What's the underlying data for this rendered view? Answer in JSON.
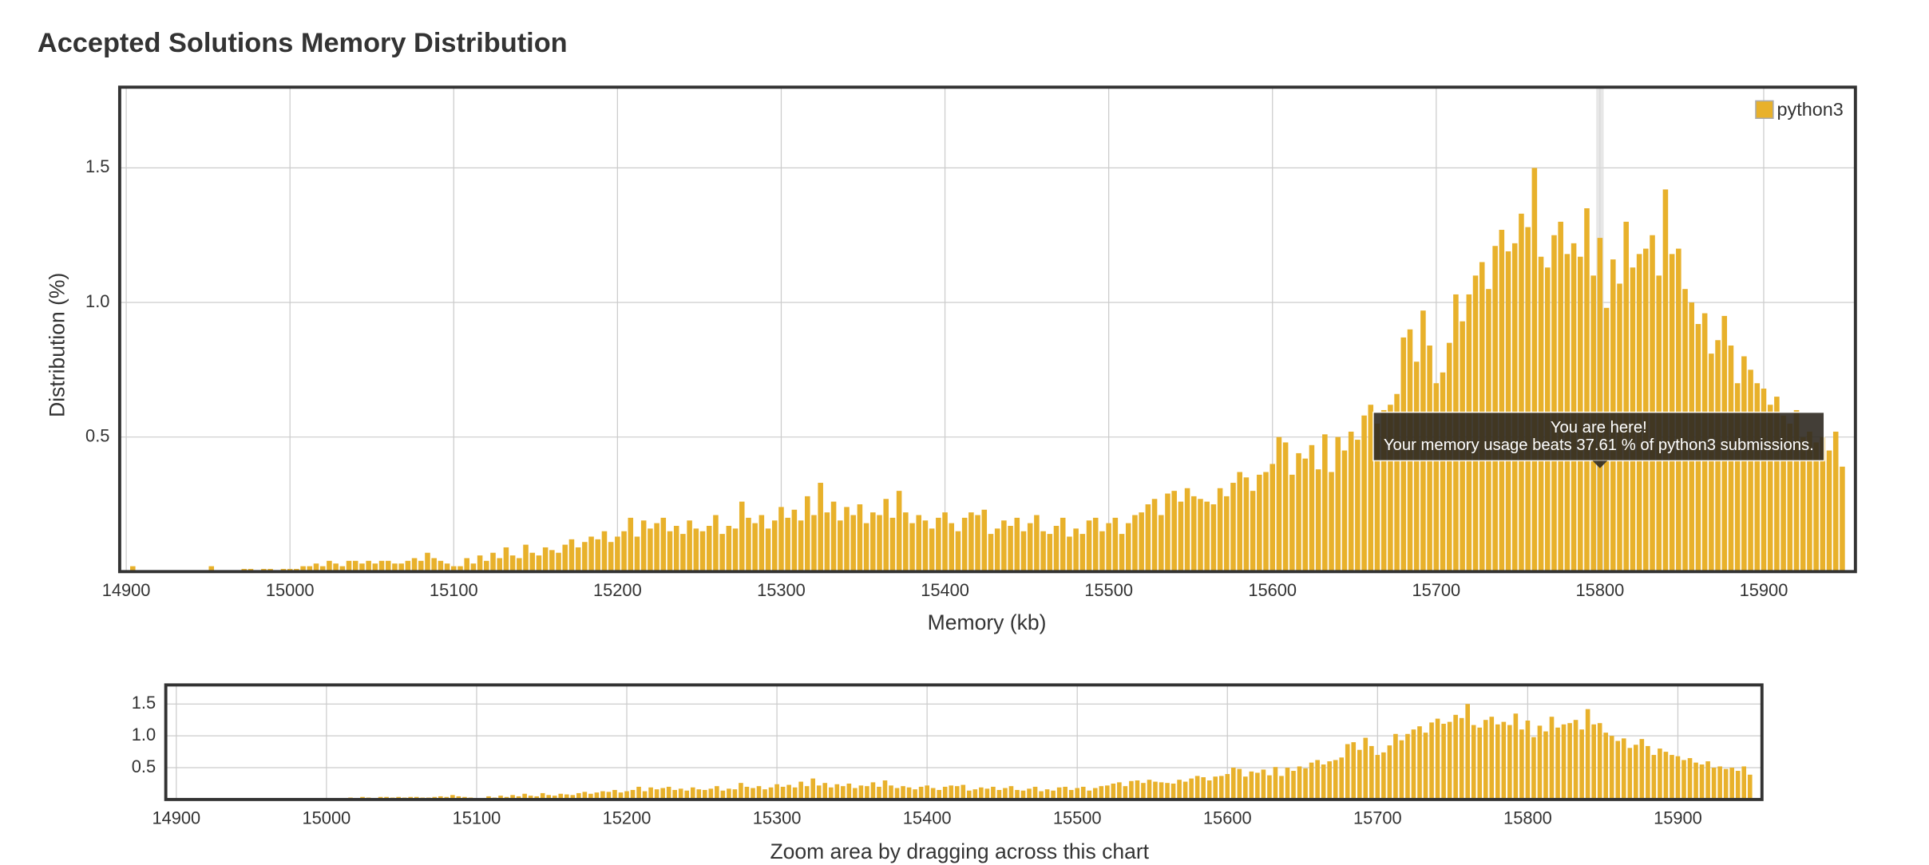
{
  "chart_data": {
    "type": "bar",
    "title": "Accepted Solutions Memory Distribution",
    "xlabel": "Memory (kb)",
    "ylabel": "Distribution (%)",
    "xlim": [
      14896,
      15956
    ],
    "ylim": [
      0,
      1.8
    ],
    "xticks": [
      14900,
      15000,
      15100,
      15200,
      15300,
      15400,
      15500,
      15600,
      15700,
      15800,
      15900
    ],
    "yticks": [
      0.5,
      {
        "value": 1,
        "label": "1.0"
      },
      1.5
    ],
    "grid": true,
    "legend": "top-right",
    "annotation": {
      "title": "You are here!",
      "text": "Your memory usage beats 37.61 % of python3 submissions.",
      "x": 15800
    },
    "navigator": {
      "label": "Zoom area by dragging across this chart",
      "xlim": [
        14893,
        15956
      ],
      "ylim": [
        0,
        1.8
      ],
      "xticks": [
        14900,
        15000,
        15100,
        15200,
        15300,
        15400,
        15500,
        15600,
        15700,
        15800,
        15900
      ],
      "yticks": [
        0.5,
        {
          "value": 1,
          "label": "1.0"
        },
        1.5
      ]
    },
    "x": [
      14904,
      14908,
      14912,
      14916,
      14920,
      14924,
      14928,
      14932,
      14936,
      14940,
      14944,
      14948,
      14952,
      14956,
      14960,
      14964,
      14968,
      14972,
      14976,
      14980,
      14984,
      14988,
      14992,
      14996,
      15000,
      15004,
      15008,
      15012,
      15016,
      15020,
      15024,
      15028,
      15032,
      15036,
      15040,
      15044,
      15048,
      15052,
      15056,
      15060,
      15064,
      15068,
      15072,
      15076,
      15080,
      15084,
      15088,
      15092,
      15096,
      15100,
      15104,
      15108,
      15112,
      15116,
      15120,
      15124,
      15128,
      15132,
      15136,
      15140,
      15144,
      15148,
      15152,
      15156,
      15160,
      15164,
      15168,
      15172,
      15176,
      15180,
      15184,
      15188,
      15192,
      15196,
      15200,
      15204,
      15208,
      15212,
      15216,
      15220,
      15224,
      15228,
      15232,
      15236,
      15240,
      15244,
      15248,
      15252,
      15256,
      15260,
      15264,
      15268,
      15272,
      15276,
      15280,
      15284,
      15288,
      15292,
      15296,
      15300,
      15304,
      15308,
      15312,
      15316,
      15320,
      15324,
      15328,
      15332,
      15336,
      15340,
      15344,
      15348,
      15352,
      15356,
      15360,
      15364,
      15368,
      15372,
      15376,
      15380,
      15384,
      15388,
      15392,
      15396,
      15400,
      15404,
      15408,
      15412,
      15416,
      15420,
      15424,
      15428,
      15432,
      15436,
      15440,
      15444,
      15448,
      15452,
      15456,
      15460,
      15464,
      15468,
      15472,
      15476,
      15480,
      15484,
      15488,
      15492,
      15496,
      15500,
      15504,
      15508,
      15512,
      15516,
      15520,
      15524,
      15528,
      15532,
      15536,
      15540,
      15544,
      15548,
      15552,
      15556,
      15560,
      15564,
      15568,
      15572,
      15576,
      15580,
      15584,
      15588,
      15592,
      15596,
      15600,
      15604,
      15608,
      15612,
      15616,
      15620,
      15624,
      15628,
      15632,
      15636,
      15640,
      15644,
      15648,
      15652,
      15656,
      15660,
      15664,
      15668,
      15672,
      15676,
      15680,
      15684,
      15688,
      15692,
      15696,
      15700,
      15704,
      15708,
      15712,
      15716,
      15720,
      15724,
      15728,
      15732,
      15736,
      15740,
      15744,
      15748,
      15752,
      15756,
      15760,
      15764,
      15768,
      15772,
      15776,
      15780,
      15784,
      15788,
      15792,
      15796,
      15800,
      15804,
      15808,
      15812,
      15816,
      15820,
      15824,
      15828,
      15832,
      15836,
      15840,
      15844,
      15848,
      15852,
      15856,
      15860,
      15864,
      15868,
      15872,
      15876,
      15880,
      15884,
      15888,
      15892,
      15896,
      15900,
      15904,
      15908,
      15912,
      15916,
      15920,
      15924,
      15928,
      15932,
      15936,
      15940,
      15944,
      15948
    ],
    "series": [
      {
        "name": "python3",
        "color": "#e8b12b",
        "values": [
          0.02,
          0,
          0,
          0,
          0,
          0,
          0,
          0,
          0,
          0,
          0,
          0,
          0.02,
          0,
          0,
          0,
          0,
          0.01,
          0.01,
          0,
          0.01,
          0.01,
          0,
          0.01,
          0.01,
          0.01,
          0.02,
          0.02,
          0.03,
          0.02,
          0.04,
          0.03,
          0.02,
          0.04,
          0.04,
          0.03,
          0.04,
          0.03,
          0.04,
          0.04,
          0.03,
          0.03,
          0.04,
          0.05,
          0.04,
          0.07,
          0.05,
          0.04,
          0.03,
          0.02,
          0.02,
          0.05,
          0.03,
          0.06,
          0.04,
          0.07,
          0.05,
          0.09,
          0.06,
          0.05,
          0.1,
          0.07,
          0.06,
          0.09,
          0.08,
          0.07,
          0.1,
          0.12,
          0.09,
          0.11,
          0.13,
          0.12,
          0.15,
          0.11,
          0.13,
          0.15,
          0.2,
          0.13,
          0.19,
          0.16,
          0.18,
          0.2,
          0.15,
          0.17,
          0.14,
          0.19,
          0.16,
          0.15,
          0.17,
          0.21,
          0.14,
          0.17,
          0.16,
          0.26,
          0.2,
          0.18,
          0.21,
          0.16,
          0.19,
          0.24,
          0.2,
          0.23,
          0.19,
          0.28,
          0.21,
          0.33,
          0.22,
          0.26,
          0.19,
          0.24,
          0.21,
          0.25,
          0.18,
          0.22,
          0.21,
          0.27,
          0.2,
          0.3,
          0.22,
          0.18,
          0.21,
          0.19,
          0.16,
          0.2,
          0.22,
          0.18,
          0.15,
          0.2,
          0.22,
          0.21,
          0.23,
          0.14,
          0.16,
          0.19,
          0.17,
          0.2,
          0.15,
          0.18,
          0.21,
          0.15,
          0.14,
          0.17,
          0.2,
          0.13,
          0.16,
          0.14,
          0.19,
          0.2,
          0.15,
          0.18,
          0.2,
          0.14,
          0.18,
          0.21,
          0.22,
          0.25,
          0.27,
          0.21,
          0.29,
          0.3,
          0.26,
          0.31,
          0.28,
          0.27,
          0.26,
          0.25,
          0.31,
          0.28,
          0.33,
          0.37,
          0.35,
          0.3,
          0.36,
          0.37,
          0.4,
          0.5,
          0.48,
          0.36,
          0.44,
          0.42,
          0.47,
          0.38,
          0.51,
          0.37,
          0.5,
          0.45,
          0.52,
          0.49,
          0.58,
          0.62,
          0.55,
          0.6,
          0.62,
          0.66,
          0.87,
          0.9,
          0.78,
          0.97,
          0.84,
          0.7,
          0.74,
          0.85,
          1.03,
          0.93,
          1.03,
          1.1,
          1.15,
          1.05,
          1.21,
          1.27,
          1.19,
          1.22,
          1.33,
          1.28,
          1.5,
          1.17,
          1.13,
          1.25,
          1.3,
          1.18,
          1.22,
          1.17,
          1.35,
          1.1,
          1.24,
          0.98,
          1.16,
          1.07,
          1.3,
          1.13,
          1.18,
          1.2,
          1.25,
          1.1,
          1.42,
          1.18,
          1.2,
          1.05,
          1.0,
          0.92,
          0.96,
          0.81,
          0.86,
          0.95,
          0.84,
          0.7,
          0.8,
          0.75,
          0.7,
          0.68,
          0.62,
          0.65,
          0.58,
          0.55,
          0.6,
          0.5,
          0.52,
          0.48,
          0.5,
          0.45,
          0.52,
          0.39
        ]
      }
    ]
  }
}
